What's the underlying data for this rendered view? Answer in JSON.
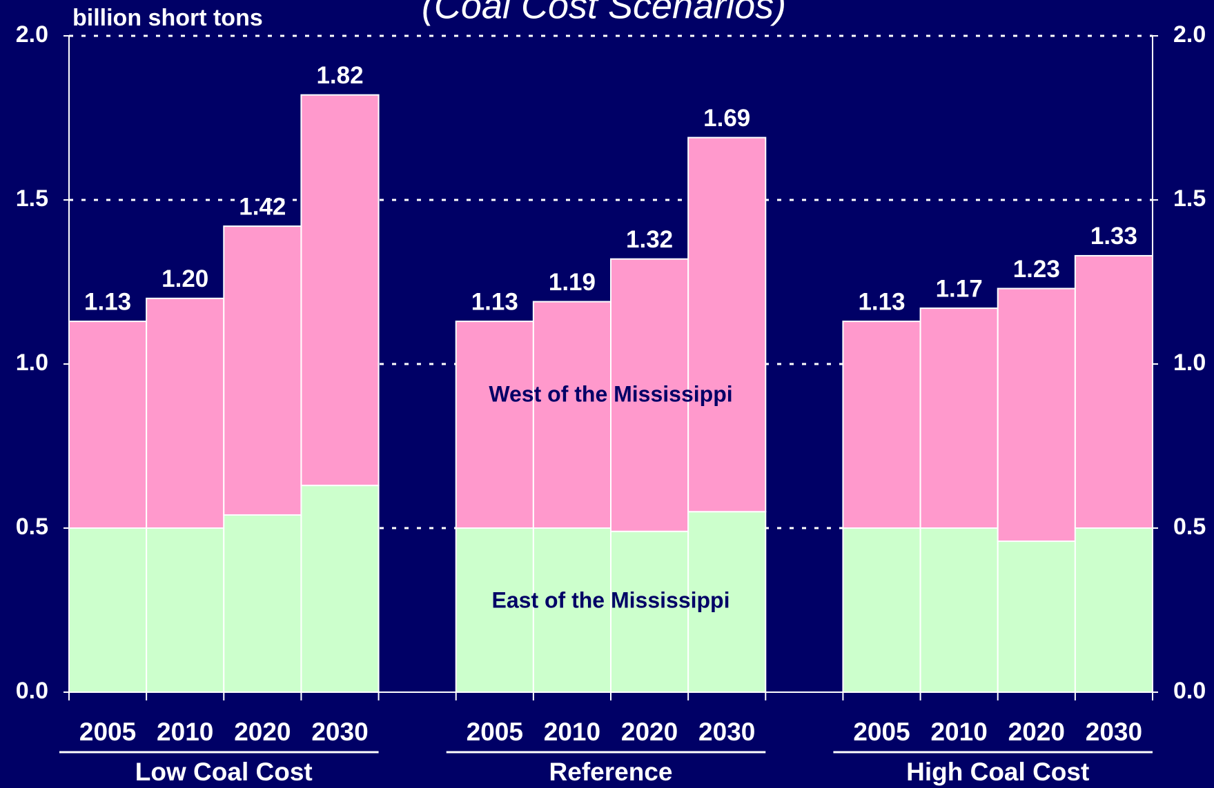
{
  "chart_data": {
    "type": "stacked-bar",
    "title": "(Coal Cost Scenarios)",
    "y_label": "billion short tons",
    "groups": [
      "Low Coal Cost",
      "Reference",
      "High Coal Cost"
    ],
    "categories": [
      "2005",
      "2010",
      "2020",
      "2030",
      "2005",
      "2010",
      "2020",
      "2030",
      "2005",
      "2010",
      "2020",
      "2030"
    ],
    "series": [
      {
        "name": "East of the Mississippi",
        "color": "#ccffcc",
        "values": [
          0.5,
          0.5,
          0.54,
          0.63,
          0.5,
          0.5,
          0.49,
          0.55,
          0.5,
          0.5,
          0.46,
          0.5
        ]
      },
      {
        "name": "West of the Mississippi",
        "color": "#ff99cc",
        "values": [
          0.63,
          0.7,
          0.88,
          1.19,
          0.63,
          0.69,
          0.83,
          1.14,
          0.63,
          0.67,
          0.77,
          0.83
        ]
      }
    ],
    "total_labels": [
      "1.13",
      "1.20",
      "1.42",
      "1.82",
      "1.13",
      "1.19",
      "1.32",
      "1.69",
      "1.13",
      "1.17",
      "1.23",
      "1.33"
    ],
    "ylim": [
      0,
      2
    ],
    "yticks": [
      {
        "value": 0,
        "label": "0.0"
      },
      {
        "value": 0.5,
        "label": "0.5"
      },
      {
        "value": 1,
        "label": "1.0"
      },
      {
        "value": 1.5,
        "label": "1.5"
      },
      {
        "value": 2,
        "label": "2.0"
      }
    ],
    "grid": true
  }
}
